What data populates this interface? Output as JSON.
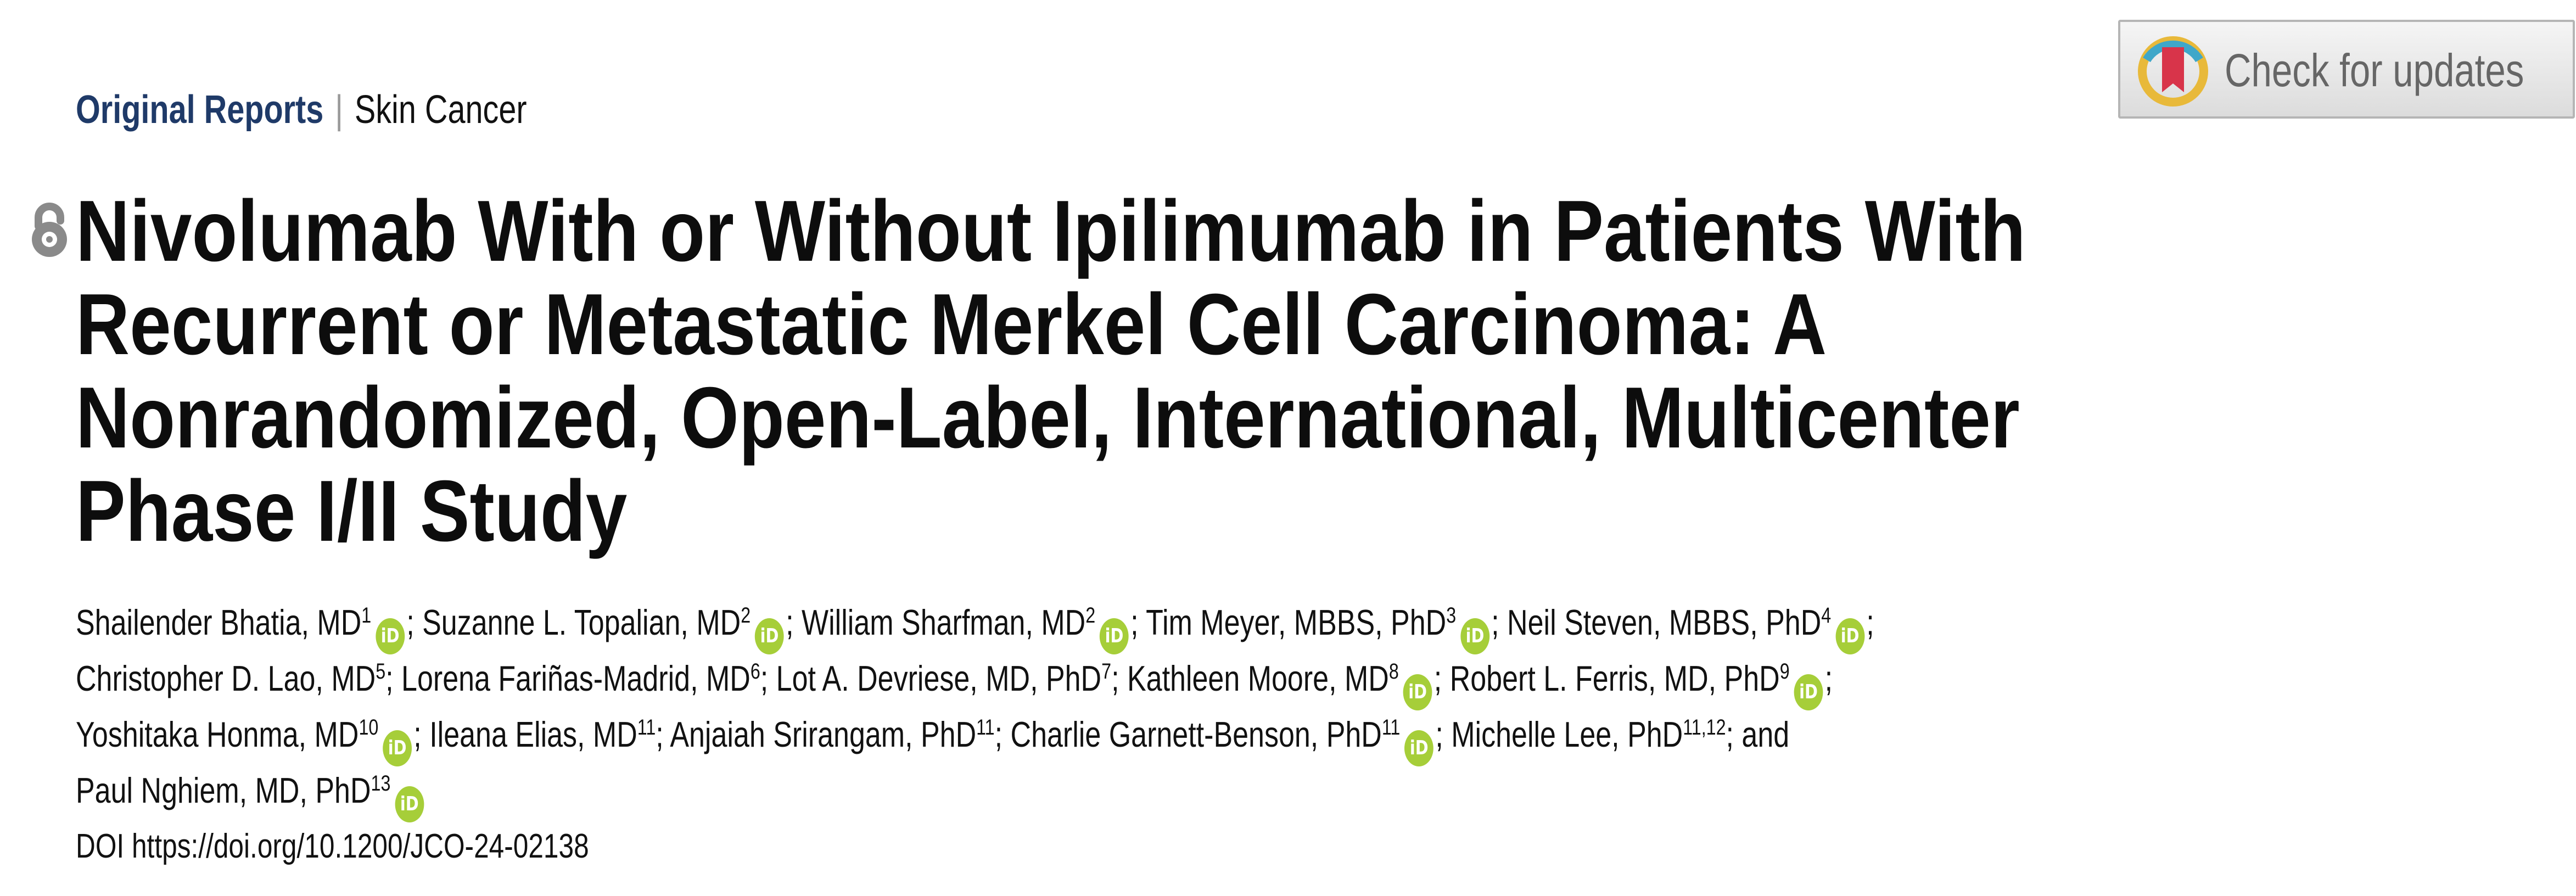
{
  "header": {
    "category": "Original Reports",
    "separator": "|",
    "subcategory": "Skin Cancer",
    "check_updates_label": "Check for updates",
    "open_access_icon": "open-access-lock-icon"
  },
  "title_lines": [
    "Nivolumab With or Without Ipilimumab in Patients With",
    "Recurrent or Metastatic Merkel Cell Carcinoma: A",
    "Nonrandomized, Open-Label, International, Multicenter",
    "Phase I/II Study"
  ],
  "authors": [
    {
      "name": "Shailender Bhatia, MD",
      "aff": "1",
      "orcid": true
    },
    {
      "name": "Suzanne L. Topalian, MD",
      "aff": "2",
      "orcid": true
    },
    {
      "name": "William Sharfman, MD",
      "aff": "2",
      "orcid": true
    },
    {
      "name": "Tim Meyer, MBBS, PhD",
      "aff": "3",
      "orcid": true
    },
    {
      "name": "Neil Steven, MBBS, PhD",
      "aff": "4",
      "orcid": true
    },
    {
      "name": "Christopher D. Lao, MD",
      "aff": "5",
      "orcid": false
    },
    {
      "name": "Lorena Fariñas-Madrid, MD",
      "aff": "6",
      "orcid": false
    },
    {
      "name": "Lot A. Devriese, MD, PhD",
      "aff": "7",
      "orcid": false
    },
    {
      "name": "Kathleen Moore, MD",
      "aff": "8",
      "orcid": true
    },
    {
      "name": "Robert L. Ferris, MD, PhD",
      "aff": "9",
      "orcid": true
    },
    {
      "name": "Yoshitaka Honma, MD",
      "aff": "10",
      "orcid": true
    },
    {
      "name": "Ileana Elias, MD",
      "aff": "11",
      "orcid": false
    },
    {
      "name": "Anjaiah Srirangam, PhD",
      "aff": "11",
      "orcid": false
    },
    {
      "name": "Charlie Garnett-Benson, PhD",
      "aff": "11",
      "orcid": true
    },
    {
      "name": "Michelle Lee, PhD",
      "aff": "11,12",
      "orcid": false
    },
    {
      "name": "Paul Nghiem, MD, PhD",
      "aff": "13",
      "orcid": true
    }
  ],
  "author_lines": [
    [
      0,
      4
    ],
    [
      5,
      9
    ],
    [
      10,
      14
    ],
    [
      15,
      15
    ]
  ],
  "author_separator": ";",
  "author_conjunction": "and",
  "orcid_label": "iD",
  "doi": {
    "label": "DOI",
    "url": "https://doi.org/10.1200/JCO-24-02138"
  },
  "colors": {
    "category": "#1f3a68",
    "orcid": "#a6ce39",
    "text": "#111111"
  }
}
